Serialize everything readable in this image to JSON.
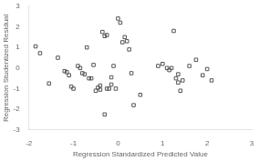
{
  "chart_data": {
    "type": "scatter",
    "xlabel": "Regression Standardized Predicted Value",
    "ylabel": "Regression Studentized Residual",
    "x": [
      -1.85,
      -1.75,
      -1.55,
      -1.35,
      -1.2,
      -1.15,
      -1.1,
      -1.05,
      -1.0,
      -0.9,
      -0.85,
      -0.8,
      -0.75,
      -0.7,
      -0.65,
      -0.6,
      -0.55,
      -0.5,
      -0.45,
      -0.4,
      -0.4,
      -0.35,
      -0.3,
      -0.3,
      -0.25,
      -0.25,
      -0.2,
      -0.15,
      -0.15,
      -0.1,
      -0.05,
      0.0,
      0.05,
      0.1,
      0.15,
      0.2,
      0.25,
      0.3,
      0.35,
      0.5,
      0.9,
      1.0,
      1.1,
      1.15,
      1.2,
      1.25,
      1.3,
      1.35,
      1.35,
      1.4,
      1.45,
      1.6,
      1.75,
      1.9,
      2.0,
      2.1
    ],
    "values": [
      1.05,
      0.72,
      -0.75,
      0.5,
      -0.15,
      -0.2,
      -0.35,
      -0.9,
      -1.0,
      0.1,
      0.0,
      -0.25,
      -0.3,
      1.0,
      -0.5,
      -0.5,
      0.15,
      -1.1,
      -0.95,
      -1.05,
      -0.85,
      1.75,
      1.55,
      -2.25,
      1.6,
      -1.0,
      -1.0,
      -0.45,
      -0.8,
      0.1,
      -1.0,
      2.4,
      2.2,
      1.25,
      1.5,
      1.3,
      0.9,
      -0.25,
      -1.8,
      -1.3,
      0.1,
      0.2,
      0.0,
      -0.1,
      0.0,
      1.8,
      -0.5,
      -0.3,
      -0.7,
      -1.1,
      -0.6,
      0.1,
      0.4,
      -0.35,
      -0.05,
      -0.6
    ],
    "color": "#555555",
    "marker": "square",
    "xlim": [
      -2,
      3
    ],
    "ylim": [
      -3,
      3
    ],
    "xticks": [
      -2,
      -1,
      0,
      1,
      2,
      3
    ],
    "yticks": [
      -3,
      -2,
      -1,
      0,
      1,
      2,
      3
    ],
    "grid": false
  }
}
